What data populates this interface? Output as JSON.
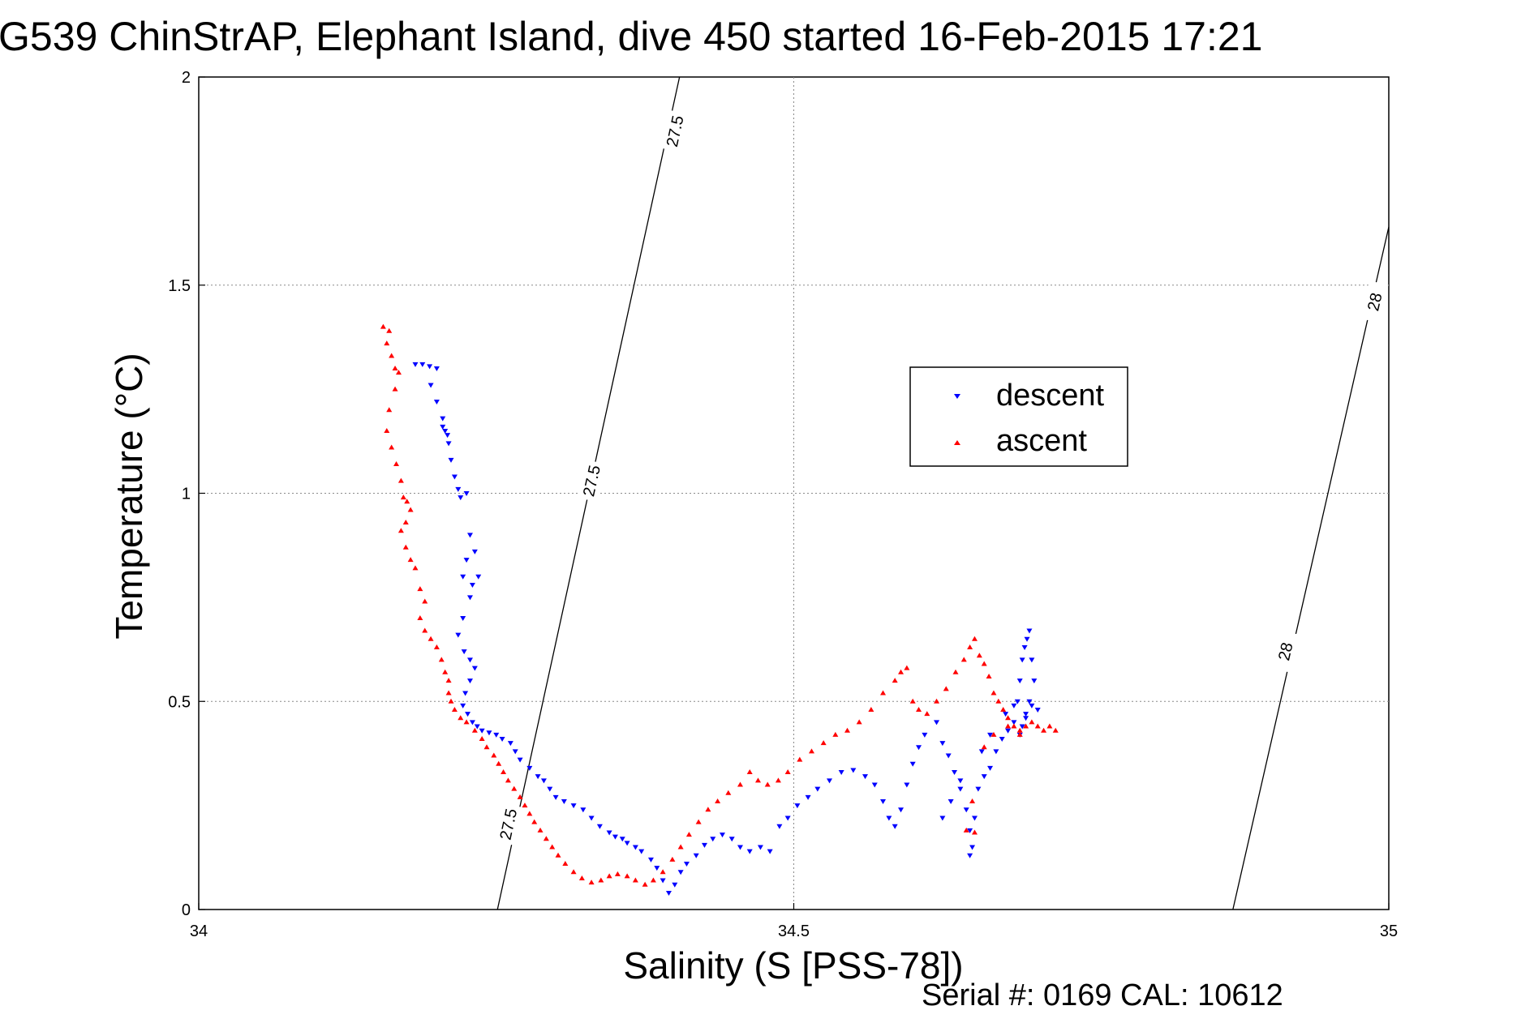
{
  "chart_data": {
    "type": "scatter",
    "title": "G539 ChinStrAP, Elephant Island, dive 450 started 16-Feb-2015 17:21",
    "xlabel": "Salinity (S [PSS-78])",
    "ylabel": "Temperature (°C)",
    "xlim": [
      34,
      35
    ],
    "ylim": [
      0,
      2
    ],
    "xticks": [
      "34",
      "34.5",
      "35"
    ],
    "yticks": [
      "0",
      "0.5",
      "1",
      "1.5",
      "2"
    ],
    "grid": true,
    "legend_position": "center-right",
    "footer": "Serial #: 0169 CAL: 10612",
    "contours": [
      {
        "label": "27.5",
        "color": "#000000",
        "points": [
          [
            34.251,
            0.0
          ],
          [
            34.404,
            2.0
          ]
        ],
        "labels_at": [
          [
            34.26,
            0.205
          ],
          [
            34.33,
            1.03
          ],
          [
            34.4,
            1.87
          ]
        ]
      },
      {
        "label": "28",
        "color": "#000000",
        "points": [
          [
            34.869,
            0.0
          ],
          [
            35.0,
            1.64
          ]
        ],
        "labels_at": [
          [
            34.913,
            0.62
          ],
          [
            34.988,
            1.46
          ]
        ]
      }
    ],
    "series": [
      {
        "name": "descent",
        "color": "#0000ff",
        "marker": "triangle-down",
        "points": [
          [
            34.182,
            1.31
          ],
          [
            34.188,
            1.31
          ],
          [
            34.194,
            1.305
          ],
          [
            34.2,
            1.3
          ],
          [
            34.195,
            1.26
          ],
          [
            34.2,
            1.22
          ],
          [
            34.205,
            1.18
          ],
          [
            34.205,
            1.16
          ],
          [
            34.207,
            1.15
          ],
          [
            34.209,
            1.14
          ],
          [
            34.21,
            1.12
          ],
          [
            34.212,
            1.08
          ],
          [
            34.215,
            1.04
          ],
          [
            34.218,
            1.01
          ],
          [
            34.22,
            0.99
          ],
          [
            34.225,
            1.0
          ],
          [
            34.228,
            0.9
          ],
          [
            34.232,
            0.86
          ],
          [
            34.225,
            0.84
          ],
          [
            34.222,
            0.8
          ],
          [
            34.23,
            0.78
          ],
          [
            34.235,
            0.8
          ],
          [
            34.228,
            0.75
          ],
          [
            34.222,
            0.7
          ],
          [
            34.218,
            0.66
          ],
          [
            34.223,
            0.62
          ],
          [
            34.228,
            0.6
          ],
          [
            34.232,
            0.58
          ],
          [
            34.228,
            0.55
          ],
          [
            34.224,
            0.52
          ],
          [
            34.222,
            0.49
          ],
          [
            34.226,
            0.47
          ],
          [
            34.23,
            0.45
          ],
          [
            34.234,
            0.44
          ],
          [
            34.238,
            0.43
          ],
          [
            34.244,
            0.425
          ],
          [
            34.25,
            0.42
          ],
          [
            34.255,
            0.41
          ],
          [
            34.262,
            0.4
          ],
          [
            34.266,
            0.38
          ],
          [
            34.27,
            0.36
          ],
          [
            34.278,
            0.34
          ],
          [
            34.285,
            0.32
          ],
          [
            34.29,
            0.31
          ],
          [
            34.295,
            0.29
          ],
          [
            34.3,
            0.27
          ],
          [
            34.307,
            0.26
          ],
          [
            34.315,
            0.25
          ],
          [
            34.323,
            0.24
          ],
          [
            34.33,
            0.22
          ],
          [
            34.337,
            0.2
          ],
          [
            34.345,
            0.185
          ],
          [
            34.35,
            0.175
          ],
          [
            34.356,
            0.17
          ],
          [
            34.36,
            0.16
          ],
          [
            34.367,
            0.15
          ],
          [
            34.372,
            0.14
          ],
          [
            34.38,
            0.12
          ],
          [
            34.385,
            0.1
          ],
          [
            34.39,
            0.07
          ],
          [
            34.395,
            0.04
          ],
          [
            34.4,
            0.06
          ],
          [
            34.405,
            0.09
          ],
          [
            34.41,
            0.11
          ],
          [
            34.418,
            0.13
          ],
          [
            34.425,
            0.155
          ],
          [
            34.432,
            0.17
          ],
          [
            34.44,
            0.18
          ],
          [
            34.448,
            0.17
          ],
          [
            34.455,
            0.15
          ],
          [
            34.463,
            0.14
          ],
          [
            34.472,
            0.15
          ],
          [
            34.48,
            0.14
          ],
          [
            34.488,
            0.2
          ],
          [
            34.495,
            0.22
          ],
          [
            34.503,
            0.25
          ],
          [
            34.512,
            0.27
          ],
          [
            34.52,
            0.29
          ],
          [
            34.53,
            0.31
          ],
          [
            34.54,
            0.33
          ],
          [
            34.55,
            0.335
          ],
          [
            34.56,
            0.32
          ],
          [
            34.568,
            0.3
          ],
          [
            34.575,
            0.26
          ],
          [
            34.58,
            0.22
          ],
          [
            34.585,
            0.2
          ],
          [
            34.59,
            0.24
          ],
          [
            34.595,
            0.3
          ],
          [
            34.6,
            0.35
          ],
          [
            34.605,
            0.39
          ],
          [
            34.61,
            0.42
          ],
          [
            34.62,
            0.45
          ],
          [
            34.625,
            0.4
          ],
          [
            34.63,
            0.37
          ],
          [
            34.635,
            0.33
          ],
          [
            34.64,
            0.29
          ],
          [
            34.645,
            0.24
          ],
          [
            34.648,
            0.19
          ],
          [
            34.65,
            0.15
          ],
          [
            34.648,
            0.13
          ],
          [
            34.652,
            0.22
          ],
          [
            34.655,
            0.29
          ],
          [
            34.66,
            0.32
          ],
          [
            34.665,
            0.34
          ],
          [
            34.67,
            0.38
          ],
          [
            34.675,
            0.41
          ],
          [
            34.68,
            0.43
          ],
          [
            34.685,
            0.45
          ],
          [
            34.688,
            0.5
          ],
          [
            34.69,
            0.55
          ],
          [
            34.692,
            0.6
          ],
          [
            34.694,
            0.63
          ],
          [
            34.696,
            0.65
          ],
          [
            34.698,
            0.67
          ],
          [
            34.7,
            0.6
          ],
          [
            34.702,
            0.55
          ],
          [
            34.698,
            0.5
          ],
          [
            34.695,
            0.47
          ],
          [
            34.692,
            0.44
          ],
          [
            34.69,
            0.42
          ],
          [
            34.695,
            0.46
          ],
          [
            34.7,
            0.49
          ],
          [
            34.705,
            0.48
          ],
          [
            34.685,
            0.49
          ],
          [
            34.678,
            0.47
          ],
          [
            34.665,
            0.42
          ],
          [
            34.658,
            0.38
          ],
          [
            34.64,
            0.31
          ],
          [
            34.632,
            0.26
          ],
          [
            34.625,
            0.22
          ]
        ]
      },
      {
        "name": "ascent",
        "color": "#ff0000",
        "marker": "triangle-up",
        "points": [
          [
            34.155,
            1.4
          ],
          [
            34.16,
            1.39
          ],
          [
            34.158,
            1.36
          ],
          [
            34.162,
            1.33
          ],
          [
            34.165,
            1.3
          ],
          [
            34.168,
            1.29
          ],
          [
            34.165,
            1.25
          ],
          [
            34.16,
            1.2
          ],
          [
            34.158,
            1.15
          ],
          [
            34.162,
            1.11
          ],
          [
            34.166,
            1.07
          ],
          [
            34.17,
            1.03
          ],
          [
            34.172,
            0.99
          ],
          [
            34.175,
            0.98
          ],
          [
            34.178,
            0.96
          ],
          [
            34.174,
            0.93
          ],
          [
            34.17,
            0.91
          ],
          [
            34.174,
            0.87
          ],
          [
            34.178,
            0.84
          ],
          [
            34.182,
            0.82
          ],
          [
            34.186,
            0.77
          ],
          [
            34.19,
            0.74
          ],
          [
            34.186,
            0.7
          ],
          [
            34.19,
            0.67
          ],
          [
            34.195,
            0.65
          ],
          [
            34.2,
            0.63
          ],
          [
            34.204,
            0.6
          ],
          [
            34.207,
            0.57
          ],
          [
            34.21,
            0.55
          ],
          [
            34.21,
            0.52
          ],
          [
            34.212,
            0.5
          ],
          [
            34.215,
            0.48
          ],
          [
            34.22,
            0.46
          ],
          [
            34.225,
            0.45
          ],
          [
            34.232,
            0.43
          ],
          [
            34.238,
            0.41
          ],
          [
            34.242,
            0.39
          ],
          [
            34.248,
            0.37
          ],
          [
            34.252,
            0.35
          ],
          [
            34.256,
            0.33
          ],
          [
            34.26,
            0.31
          ],
          [
            34.265,
            0.29
          ],
          [
            34.27,
            0.27
          ],
          [
            34.274,
            0.25
          ],
          [
            34.278,
            0.23
          ],
          [
            34.282,
            0.21
          ],
          [
            34.287,
            0.19
          ],
          [
            34.292,
            0.17
          ],
          [
            34.297,
            0.15
          ],
          [
            34.302,
            0.13
          ],
          [
            34.308,
            0.11
          ],
          [
            34.315,
            0.09
          ],
          [
            34.322,
            0.075
          ],
          [
            34.33,
            0.065
          ],
          [
            34.338,
            0.07
          ],
          [
            34.345,
            0.08
          ],
          [
            34.352,
            0.085
          ],
          [
            34.36,
            0.08
          ],
          [
            34.367,
            0.07
          ],
          [
            34.375,
            0.06
          ],
          [
            34.382,
            0.07
          ],
          [
            34.39,
            0.09
          ],
          [
            34.398,
            0.12
          ],
          [
            34.405,
            0.15
          ],
          [
            34.412,
            0.18
          ],
          [
            34.42,
            0.21
          ],
          [
            34.428,
            0.24
          ],
          [
            34.436,
            0.26
          ],
          [
            34.445,
            0.28
          ],
          [
            34.455,
            0.3
          ],
          [
            34.463,
            0.33
          ],
          [
            34.47,
            0.31
          ],
          [
            34.478,
            0.3
          ],
          [
            34.487,
            0.31
          ],
          [
            34.495,
            0.33
          ],
          [
            34.505,
            0.36
          ],
          [
            34.515,
            0.38
          ],
          [
            34.525,
            0.4
          ],
          [
            34.535,
            0.42
          ],
          [
            34.545,
            0.43
          ],
          [
            34.555,
            0.45
          ],
          [
            34.565,
            0.48
          ],
          [
            34.575,
            0.52
          ],
          [
            34.585,
            0.55
          ],
          [
            34.59,
            0.57
          ],
          [
            34.595,
            0.58
          ],
          [
            34.6,
            0.5
          ],
          [
            34.605,
            0.48
          ],
          [
            34.612,
            0.47
          ],
          [
            34.62,
            0.5
          ],
          [
            34.628,
            0.53
          ],
          [
            34.636,
            0.57
          ],
          [
            34.643,
            0.6
          ],
          [
            34.648,
            0.63
          ],
          [
            34.652,
            0.65
          ],
          [
            34.656,
            0.61
          ],
          [
            34.66,
            0.59
          ],
          [
            34.664,
            0.56
          ],
          [
            34.668,
            0.52
          ],
          [
            34.672,
            0.5
          ],
          [
            34.676,
            0.48
          ],
          [
            34.68,
            0.46
          ],
          [
            34.685,
            0.44
          ],
          [
            34.69,
            0.43
          ],
          [
            34.695,
            0.44
          ],
          [
            34.7,
            0.45
          ],
          [
            34.705,
            0.44
          ],
          [
            34.71,
            0.43
          ],
          [
            34.715,
            0.44
          ],
          [
            34.72,
            0.43
          ],
          [
            34.69,
            0.42
          ],
          [
            34.68,
            0.44
          ],
          [
            34.668,
            0.42
          ],
          [
            34.66,
            0.39
          ],
          [
            34.65,
            0.26
          ],
          [
            34.645,
            0.19
          ],
          [
            34.652,
            0.185
          ]
        ]
      }
    ]
  }
}
